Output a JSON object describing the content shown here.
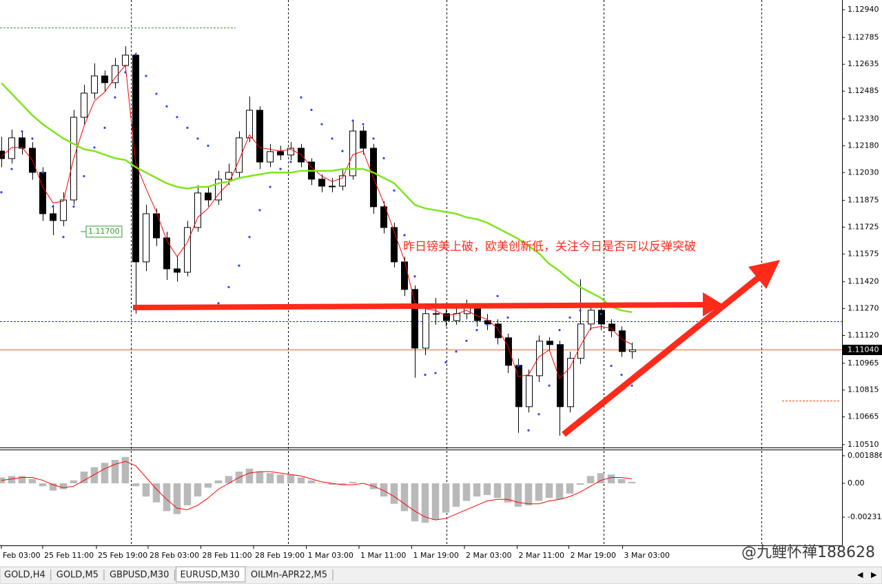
{
  "chart_data": [
    {
      "type": "candlestick",
      "annotation": "昨日镑美上破，欧美创新低，关注今日是否可以反弹突破",
      "xlim": [
        -0.13,
        81.33
      ],
      "ylim": [
        1.10498,
        1.12994
      ],
      "yticks": [
        {
          "value": 1.1294,
          "label": "1.12940"
        },
        {
          "value": 1.12785,
          "label": "1.12785"
        },
        {
          "value": 1.12635,
          "label": "1.12635"
        },
        {
          "value": 1.12485,
          "label": "1.12485"
        },
        {
          "value": 1.1233,
          "label": "1.12330"
        },
        {
          "value": 1.1218,
          "label": "1.12180"
        },
        {
          "value": 1.1203,
          "label": "1.12030"
        },
        {
          "value": 1.11875,
          "label": "1.11875"
        },
        {
          "value": 1.11725,
          "label": "1.11725"
        },
        {
          "value": 1.11575,
          "label": "1.11575"
        },
        {
          "value": 1.1142,
          "label": "1.11420"
        },
        {
          "value": 1.1127,
          "label": "1.11270"
        },
        {
          "value": 1.1112,
          "label": "1.11120"
        },
        {
          "value": 1.10965,
          "label": "1.10965"
        },
        {
          "value": 1.10815,
          "label": "1.10815"
        },
        {
          "value": 1.10665,
          "label": "1.10665"
        },
        {
          "value": 1.1051,
          "label": "1.10510"
        }
      ],
      "xticks": [
        {
          "value": 0,
          "label": "Feb 03:00"
        },
        {
          "value": 4,
          "label": "25 Feb 11:00"
        },
        {
          "value": 9.2,
          "label": "25 Feb 19:00"
        },
        {
          "value": 14.2,
          "label": "28 Feb 03:00"
        },
        {
          "value": 19.3,
          "label": "28 Feb 11:00"
        },
        {
          "value": 24.4,
          "label": "28 Feb 19:00"
        },
        {
          "value": 29.5,
          "label": "1 Mar 03:00"
        },
        {
          "value": 34.6,
          "label": "1 Mar 11:00"
        },
        {
          "value": 39.7,
          "label": "1 Mar 19:00"
        },
        {
          "value": 44.8,
          "label": "2 Mar 03:00"
        },
        {
          "value": 49.9,
          "label": "2 Mar 11:00"
        },
        {
          "value": 54.9,
          "label": "2 Mar 19:00"
        },
        {
          "value": 60.1,
          "label": "3 Mar 03:00"
        }
      ],
      "xgrid": [
        12.53,
        27.73,
        43.07,
        58.27,
        73.53
      ],
      "open": [
        1.1215,
        1.12108,
        1.12224,
        1.12166,
        1.12031,
        1.118,
        1.11762,
        1.11877,
        1.12339,
        1.12474,
        1.1257,
        1.12532,
        1.12628,
        1.12686,
        1.11531,
        1.118,
        1.11665,
        1.11492,
        1.11473,
        1.11723,
        1.11916,
        1.11877,
        1.11993,
        1.12031,
        1.12224,
        1.12378,
        1.12089,
        1.12147,
        1.12128,
        1.12166,
        1.12089,
        1.11993,
        1.11954,
        1.11954,
        1.12012,
        1.12262,
        1.12166,
        1.11839,
        1.11723,
        1.11531,
        1.11377,
        1.11049,
        1.11242,
        1.11242,
        1.11203,
        1.11242,
        1.1128,
        1.11203,
        1.11184,
        1.11107,
        1.10953,
        1.10722,
        1.10895,
        1.11088,
        1.11069,
        1.10722,
        1.10992,
        1.11184,
        1.11261,
        1.11184,
        1.11146,
        1.1103
      ],
      "high": [
        1.1223,
        1.1227,
        1.1226,
        1.122,
        1.1206,
        1.1185,
        1.1192,
        1.1238,
        1.1252,
        1.1264,
        1.126,
        1.1267,
        1.12736,
        1.127,
        1.1185,
        1.1183,
        1.117,
        1.1156,
        1.1176,
        1.1196,
        1.1195,
        1.1204,
        1.1208,
        1.1226,
        1.12455,
        1.124,
        1.1219,
        1.1218,
        1.122,
        1.1219,
        1.1211,
        1.1202,
        1.12,
        1.1205,
        1.1232,
        1.1229,
        1.1219,
        1.1187,
        1.1175,
        1.1156,
        1.114,
        1.113,
        1.1133,
        1.113,
        1.1128,
        1.1132,
        1.113,
        1.1124,
        1.1121,
        1.1113,
        1.1099,
        1.1093,
        1.1112,
        1.1111,
        1.1109,
        1.1103,
        1.11434,
        1.113,
        1.1129,
        1.1121,
        1.1117,
        1.1108
      ],
      "low": [
        1.1206,
        1.1208,
        1.1213,
        1.1199,
        1.1176,
        1.1168,
        1.1173,
        1.1185,
        1.123,
        1.1244,
        1.1248,
        1.125,
        1.126,
        1.11242,
        1.1148,
        1.1162,
        1.1143,
        1.1142,
        1.1145,
        1.117,
        1.1184,
        1.1185,
        1.1196,
        1.12,
        1.122,
        1.1205,
        1.1206,
        1.121,
        1.121,
        1.1206,
        1.1196,
        1.1192,
        1.1192,
        1.1193,
        1.1199,
        1.1213,
        1.118,
        1.1169,
        1.115,
        1.1134,
        1.10884,
        1.1101,
        1.1118,
        1.1117,
        1.1118,
        1.1121,
        1.1117,
        1.1115,
        1.1107,
        1.1091,
        1.10576,
        1.1069,
        1.1086,
        1.1103,
        1.1056,
        1.1069,
        1.1096,
        1.1115,
        1.1115,
        1.1111,
        1.11,
        1.1099
      ],
      "close": [
        1.12108,
        1.12224,
        1.12166,
        1.12031,
        1.118,
        1.11762,
        1.11877,
        1.12339,
        1.12474,
        1.1257,
        1.12532,
        1.12628,
        1.12686,
        1.11531,
        1.118,
        1.11665,
        1.11492,
        1.11473,
        1.11723,
        1.11916,
        1.11877,
        1.11993,
        1.12031,
        1.12224,
        1.12378,
        1.12089,
        1.12147,
        1.12128,
        1.12166,
        1.12089,
        1.11993,
        1.11954,
        1.11954,
        1.12012,
        1.12262,
        1.12166,
        1.11839,
        1.11723,
        1.11531,
        1.11377,
        1.11049,
        1.11242,
        1.11242,
        1.11203,
        1.11242,
        1.1128,
        1.11203,
        1.11184,
        1.11107,
        1.10953,
        1.10722,
        1.10895,
        1.11088,
        1.11069,
        1.10722,
        1.10992,
        1.11184,
        1.11261,
        1.11184,
        1.11146,
        1.1103,
        1.1104
      ],
      "lines": [
        {
          "color": "#ff0000",
          "width": 1,
          "values": [
            1.1212,
            1.1217,
            1.1217,
            1.121,
            1.1195,
            1.1186,
            1.1187,
            1.1211,
            1.1229,
            1.1243,
            1.1248,
            1.1256,
            1.1263,
            1.1208,
            1.1194,
            1.1181,
            1.1165,
            1.1156,
            1.1164,
            1.1178,
            1.1183,
            1.1191,
            1.1197,
            1.121,
            1.1224,
            1.1217,
            1.1216,
            1.1215,
            1.1216,
            1.1213,
            1.1206,
            1.1201,
            1.1198,
            1.12,
            1.1213,
            1.1215,
            1.12,
            1.1186,
            1.117,
            1.1154,
            1.113,
            1.1127,
            1.1126,
            1.1123,
            1.1124,
            1.1126,
            1.1123,
            1.1121,
            1.1116,
            1.1106,
            1.1089,
            1.109,
            1.11,
            1.1104,
            1.1088,
            1.1094,
            1.1106,
            1.1116,
            1.1117,
            1.1116,
            1.111,
            1.1107
          ]
        },
        {
          "color": "#7ee51a",
          "width": 2.5,
          "values": [
            1.1253,
            1.1247,
            1.1241,
            1.1235,
            1.123,
            1.1226,
            1.1222,
            1.1219,
            1.1216,
            1.1215,
            1.1213,
            1.1211,
            1.121,
            1.1206,
            1.1203,
            1.12,
            1.1197,
            1.1195,
            1.1194,
            1.1195,
            1.1195,
            1.1197,
            1.1198,
            1.12,
            1.1201,
            1.1202,
            1.1203,
            1.1203,
            1.1203,
            1.1204,
            1.1204,
            1.1204,
            1.1204,
            1.1205,
            1.1205,
            1.1205,
            1.1203,
            1.12,
            1.1197,
            1.1191,
            1.1185,
            1.1183,
            1.1182,
            1.1181,
            1.118,
            1.1178,
            1.1177,
            1.1175,
            1.1172,
            1.1169,
            1.1166,
            1.1162,
            1.1158,
            1.1152,
            1.1148,
            1.1143,
            1.1139,
            1.1136,
            1.1133,
            1.1128,
            1.1126,
            1.1125
          ]
        }
      ],
      "sar": {
        "color": "#2f3fff",
        "values": [
          1.1192,
          1.1205,
          1.1226,
          1.1222,
          1.1203,
          1.1184,
          1.1167,
          1.1184,
          1.1201,
          1.1217,
          1.1228,
          1.1245,
          1.1259,
          1.1269,
          1.1257,
          1.1247,
          1.124,
          1.1234,
          1.1228,
          1.1222,
          1.1218,
          1.113,
          1.1139,
          1.1151,
          1.1167,
          1.1182,
          1.1195,
          1.1205,
          1.1209,
          1.1245,
          1.1238,
          1.123,
          1.1222,
          1.1215,
          1.1232,
          1.123,
          1.1222,
          1.1211,
          1.1193,
          1.1168,
          1.1145,
          1.109,
          1.1091,
          1.1097,
          1.1103,
          1.1109,
          1.1115,
          1.1118,
          1.1134,
          1.1122,
          1.1095,
          1.1059,
          1.1068,
          1.1084,
          1.1115,
          1.1122,
          1.1126,
          1.1128,
          1.1124,
          1.1095,
          1.109,
          1.1084
        ]
      },
      "levels": [
        {
          "value": 1.1284,
          "color": "#2e9e2e",
          "from": -0.13,
          "to": 22.67
        },
        {
          "value": 1.112,
          "color": "#2020ff",
          "from": -0.13,
          "to": 81.33
        },
        {
          "value": 1.10756,
          "color": "#ff4500",
          "from": 75.53,
          "to": 81.2
        }
      ],
      "hline": {
        "value": 1.117,
        "label": "1.11700",
        "color": "#2e9e2e",
        "x": 8.2
      },
      "bid": {
        "value": 1.1104,
        "label": "1.11040",
        "color": "#e8602a"
      }
    },
    {
      "type": "bar",
      "xlim": [
        -0.13,
        81.33
      ],
      "ylim": [
        -0.00424,
        0.00226
      ],
      "yticks": [
        {
          "value": 0.001886,
          "label": "0.001886"
        },
        {
          "value": 0,
          "label": "0.00"
        },
        {
          "value": -0.002313,
          "label": "-0.002313"
        }
      ],
      "color": "#b9b9b9",
      "values": [
        0.0004,
        0.0005,
        0.0005,
        0.0003,
        -0.0002,
        -0.0005,
        -0.0004,
        0.0002,
        0.0008,
        0.0011,
        0.0014,
        0.0016,
        0.0018,
        -0.0002,
        -0.0009,
        -0.0013,
        -0.0019,
        -0.0021,
        -0.0015,
        -0.0009,
        -0.0003,
        0.0002,
        0.0005,
        0.0008,
        0.001,
        0.0008,
        0.0007,
        0.0006,
        0.0006,
        0.0004,
        0.0002,
        0,
        -0.0001,
        -0.0001,
        0.0001,
        0,
        -0.0004,
        -0.0009,
        -0.0014,
        -0.0019,
        -0.0026,
        -0.0027,
        -0.0025,
        -0.002,
        -0.0016,
        -0.0012,
        -0.0009,
        -0.0008,
        -0.001,
        -0.0013,
        -0.0016,
        -0.0015,
        -0.0012,
        -0.001,
        -0.0011,
        -0.0007,
        -0.0001,
        0.0005,
        0.0007,
        0.0006,
        0.0003,
        0.0001
      ],
      "signal": {
        "color": "#ff0000",
        "values": [
          0.0002,
          0.0003,
          0.0004,
          0.0004,
          0.0002,
          -0.0001,
          -0.0003,
          -0.0002,
          0.0002,
          0.0006,
          0.001,
          0.0013,
          0.0015,
          0.0012,
          0.0004,
          -0.0004,
          -0.0011,
          -0.0017,
          -0.0018,
          -0.0015,
          -0.001,
          -0.0004,
          0,
          0.0004,
          0.0007,
          0.0008,
          0.0008,
          0.0007,
          0.0006,
          0.0005,
          0.0003,
          0.0001,
          0,
          -0.0001,
          -0.0001,
          0,
          -0.0002,
          -0.0005,
          -0.0009,
          -0.0014,
          -0.0019,
          -0.0023,
          -0.0025,
          -0.0024,
          -0.0021,
          -0.0018,
          -0.0015,
          -0.0012,
          -0.0011,
          -0.0011,
          -0.0013,
          -0.0014,
          -0.0014,
          -0.0012,
          -0.0011,
          -0.0009,
          -0.0006,
          -0.0002,
          0.0002,
          0.0004,
          0.0004,
          0.0003
        ]
      }
    }
  ],
  "tabs": [
    "GOLD,H4",
    "GOLD,M5",
    "GBPUSD,M30",
    "EURUSD,M30",
    "OILMn-APR22,M5"
  ],
  "active_tab": 3,
  "watermark": "@九鲤怀禅188628"
}
